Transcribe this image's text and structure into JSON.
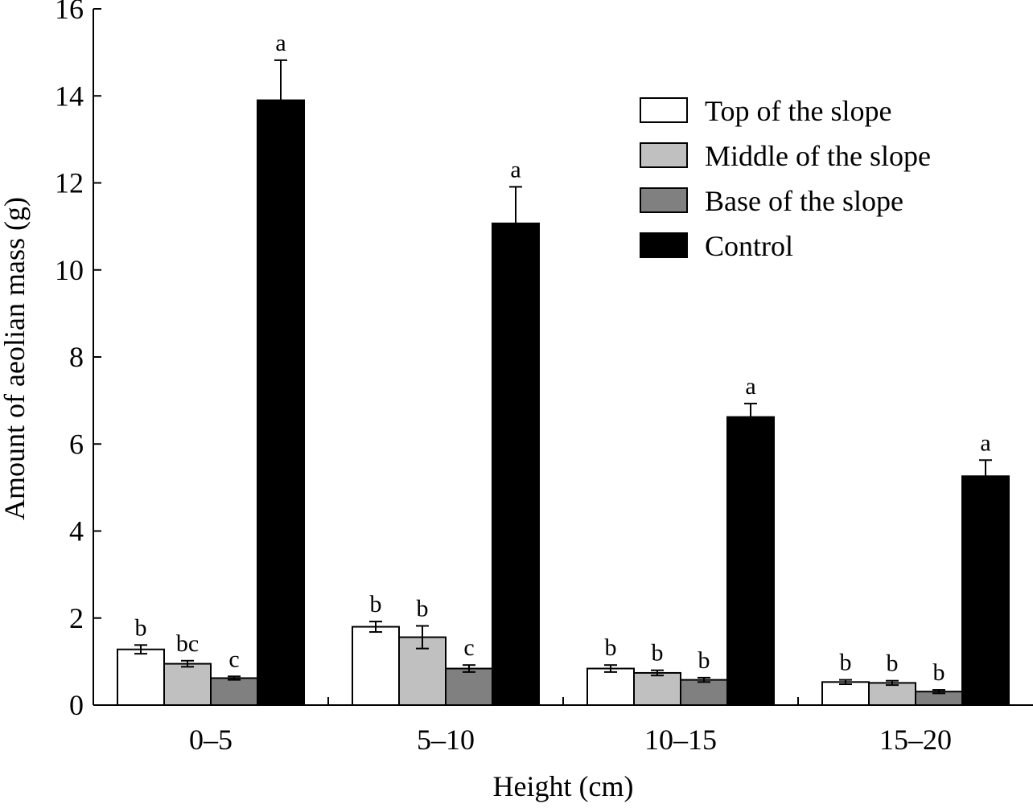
{
  "chart_data": {
    "type": "bar",
    "title": "",
    "xlabel": "Height (cm)",
    "ylabel": "Amount of aeolian mass (g)",
    "ylim": [
      0,
      16
    ],
    "yticks": [
      "0",
      "2",
      "4",
      "6",
      "8",
      "10",
      "12",
      "14",
      "16"
    ],
    "grid": false,
    "legend_position": "top-right",
    "categories": [
      "0–5",
      "5–10",
      "10–15",
      "15–20"
    ],
    "series": [
      {
        "name": "Top of the slope",
        "color": "#ffffff",
        "values": [
          1.28,
          1.8,
          0.84,
          0.53
        ],
        "errors": [
          0.1,
          0.12,
          0.08,
          0.05
        ],
        "labels": [
          "b",
          "b",
          "b",
          "b"
        ]
      },
      {
        "name": "Middle of the slope",
        "color": "#c0c0c0",
        "values": [
          0.95,
          1.56,
          0.74,
          0.51
        ],
        "errors": [
          0.07,
          0.26,
          0.06,
          0.05
        ],
        "labels": [
          "bc",
          "b",
          "b",
          "b"
        ]
      },
      {
        "name": "Base of the slope",
        "color": "#808080",
        "values": [
          0.62,
          0.84,
          0.58,
          0.31
        ],
        "errors": [
          0.04,
          0.08,
          0.05,
          0.04
        ],
        "labels": [
          "c",
          "c",
          "b",
          "b"
        ]
      },
      {
        "name": "Control",
        "color": "#000000",
        "values": [
          13.9,
          11.07,
          6.62,
          5.26
        ],
        "errors": [
          0.92,
          0.84,
          0.31,
          0.37
        ],
        "labels": [
          "a",
          "a",
          "a",
          "a"
        ]
      }
    ]
  }
}
